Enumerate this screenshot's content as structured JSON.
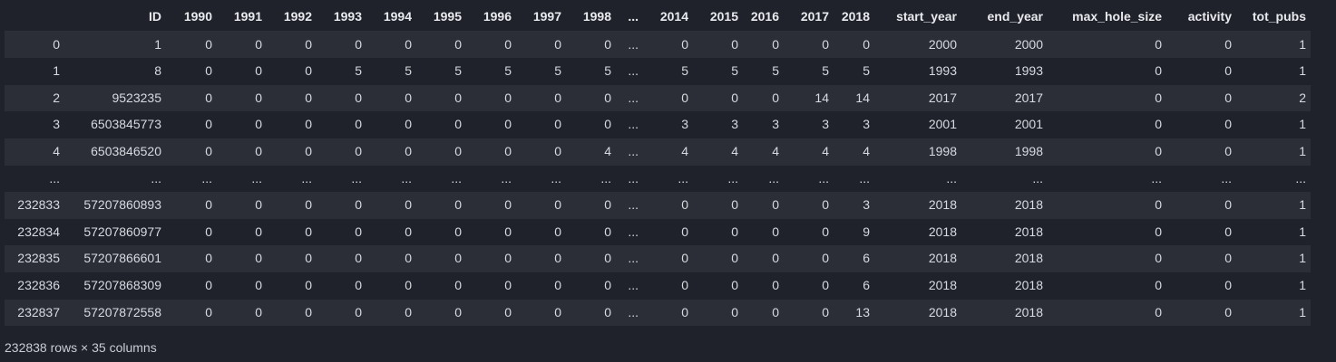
{
  "dataframe": {
    "columns": [
      "",
      "ID",
      "1990",
      "1991",
      "1992",
      "1993",
      "1994",
      "1995",
      "1996",
      "1997",
      "1998",
      "...",
      "2014",
      "2015",
      "2016",
      "2017",
      "2018",
      "start_year",
      "end_year",
      "max_hole_size",
      "activity",
      "tot_pubs"
    ],
    "rows": [
      [
        "0",
        "1",
        "0",
        "0",
        "0",
        "0",
        "0",
        "0",
        "0",
        "0",
        "0",
        "...",
        "0",
        "0",
        "0",
        "0",
        "0",
        "2000",
        "2000",
        "0",
        "0",
        "1"
      ],
      [
        "1",
        "8",
        "0",
        "0",
        "0",
        "5",
        "5",
        "5",
        "5",
        "5",
        "5",
        "...",
        "5",
        "5",
        "5",
        "5",
        "5",
        "1993",
        "1993",
        "0",
        "0",
        "1"
      ],
      [
        "2",
        "9523235",
        "0",
        "0",
        "0",
        "0",
        "0",
        "0",
        "0",
        "0",
        "0",
        "...",
        "0",
        "0",
        "0",
        "14",
        "14",
        "2017",
        "2017",
        "0",
        "0",
        "2"
      ],
      [
        "3",
        "6503845773",
        "0",
        "0",
        "0",
        "0",
        "0",
        "0",
        "0",
        "0",
        "0",
        "...",
        "3",
        "3",
        "3",
        "3",
        "3",
        "2001",
        "2001",
        "0",
        "0",
        "1"
      ],
      [
        "4",
        "6503846520",
        "0",
        "0",
        "0",
        "0",
        "0",
        "0",
        "0",
        "0",
        "4",
        "...",
        "4",
        "4",
        "4",
        "4",
        "4",
        "1998",
        "1998",
        "0",
        "0",
        "1"
      ],
      [
        "...",
        "...",
        "...",
        "...",
        "...",
        "...",
        "...",
        "...",
        "...",
        "...",
        "...",
        "...",
        "...",
        "...",
        "...",
        "...",
        "...",
        "...",
        "...",
        "...",
        "...",
        "..."
      ],
      [
        "232833",
        "57207860893",
        "0",
        "0",
        "0",
        "0",
        "0",
        "0",
        "0",
        "0",
        "0",
        "...",
        "0",
        "0",
        "0",
        "0",
        "3",
        "2018",
        "2018",
        "0",
        "0",
        "1"
      ],
      [
        "232834",
        "57207860977",
        "0",
        "0",
        "0",
        "0",
        "0",
        "0",
        "0",
        "0",
        "0",
        "...",
        "0",
        "0",
        "0",
        "0",
        "9",
        "2018",
        "2018",
        "0",
        "0",
        "1"
      ],
      [
        "232835",
        "57207866601",
        "0",
        "0",
        "0",
        "0",
        "0",
        "0",
        "0",
        "0",
        "0",
        "...",
        "0",
        "0",
        "0",
        "0",
        "6",
        "2018",
        "2018",
        "0",
        "0",
        "1"
      ],
      [
        "232836",
        "57207868309",
        "0",
        "0",
        "0",
        "0",
        "0",
        "0",
        "0",
        "0",
        "0",
        "...",
        "0",
        "0",
        "0",
        "0",
        "6",
        "2018",
        "2018",
        "0",
        "0",
        "1"
      ],
      [
        "232837",
        "57207872558",
        "0",
        "0",
        "0",
        "0",
        "0",
        "0",
        "0",
        "0",
        "0",
        "...",
        "0",
        "0",
        "0",
        "0",
        "13",
        "2018",
        "2018",
        "0",
        "0",
        "1"
      ]
    ],
    "shape_text": "232838 rows × 35 columns"
  },
  "colors": {
    "background": "#1f222a",
    "row_stripe": "#2b2e37",
    "text": "#d7dae0"
  }
}
